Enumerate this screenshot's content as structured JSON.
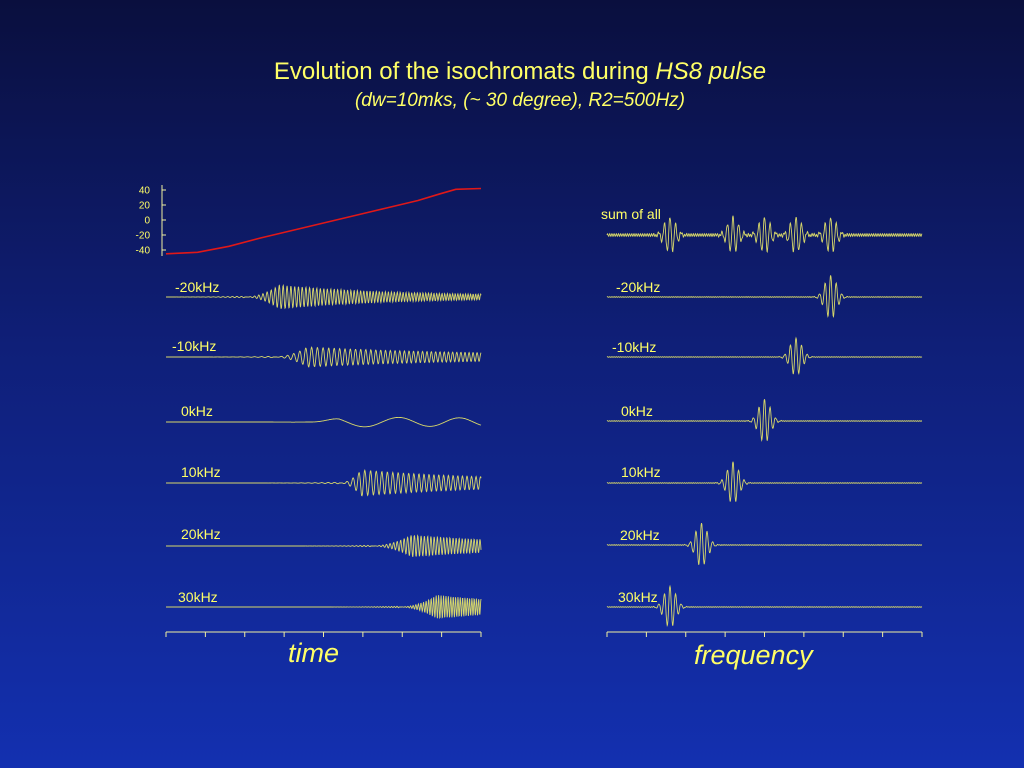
{
  "title": {
    "line1_prefix": "Evolution of the isochromats during ",
    "line1_italic": "HS8 pulse",
    "line2": "(dw=10mks, (~ 30 degree), R2=500Hz)"
  },
  "colors": {
    "signal": "#d8d86a",
    "label": "#ffff66",
    "sweep": "#e01818",
    "axis": "#f0f0a0"
  },
  "panels": {
    "time_caption": "time",
    "frequency_caption": "frequency"
  },
  "chart_data": [
    {
      "type": "line",
      "name": "frequency sweep",
      "ytick_labels": [
        "40",
        "20",
        "0",
        "-20",
        "-40"
      ],
      "yticks": [
        40,
        20,
        0,
        -20,
        -40
      ],
      "ylim": [
        -45,
        45
      ],
      "x": [
        0,
        0.1,
        0.2,
        0.3,
        0.4,
        0.5,
        0.6,
        0.7,
        0.8,
        0.87,
        0.92,
        1.0
      ],
      "values": [
        -45,
        -43,
        -35,
        -24,
        -14,
        -4,
        6,
        16,
        26,
        35,
        41,
        42
      ]
    },
    {
      "type": "line",
      "name": "time",
      "traces": [
        {
          "label": "-20kHz",
          "onset": 0.25,
          "peak": 0.36,
          "amplitude": 12,
          "cycles": 62,
          "decay": 0.55
        },
        {
          "label": "-10kHz",
          "onset": 0.34,
          "peak": 0.45,
          "amplitude": 10,
          "cycles": 40,
          "decay": 0.85
        },
        {
          "label": "0kHz",
          "onset": 0.45,
          "peak": 0.55,
          "amplitude": 5,
          "cycles": 3,
          "decay": 3.0
        },
        {
          "label": "10kHz",
          "onset": 0.55,
          "peak": 0.62,
          "amplitude": 13,
          "cycles": 38,
          "decay": 0.7
        },
        {
          "label": "20kHz",
          "onset": 0.65,
          "peak": 0.78,
          "amplitude": 11,
          "cycles": 60,
          "decay": 0.6
        },
        {
          "label": "30kHz",
          "onset": 0.74,
          "peak": 0.86,
          "amplitude": 12,
          "cycles": 80,
          "decay": 0.5
        }
      ]
    },
    {
      "type": "line",
      "name": "frequency",
      "sum_label": "sum of all",
      "sum_peaks": [
        0.2,
        0.4,
        0.5,
        0.6,
        0.71
      ],
      "traces": [
        {
          "label": "-20kHz",
          "peak": 0.71,
          "amplitude": 22
        },
        {
          "label": "-10kHz",
          "peak": 0.6,
          "amplitude": 19
        },
        {
          "label": "0kHz",
          "peak": 0.5,
          "amplitude": 22
        },
        {
          "label": "10kHz",
          "peak": 0.4,
          "amplitude": 21
        },
        {
          "label": "20kHz",
          "peak": 0.3,
          "amplitude": 22
        },
        {
          "label": "30kHz",
          "peak": 0.2,
          "amplitude": 21
        }
      ]
    }
  ]
}
